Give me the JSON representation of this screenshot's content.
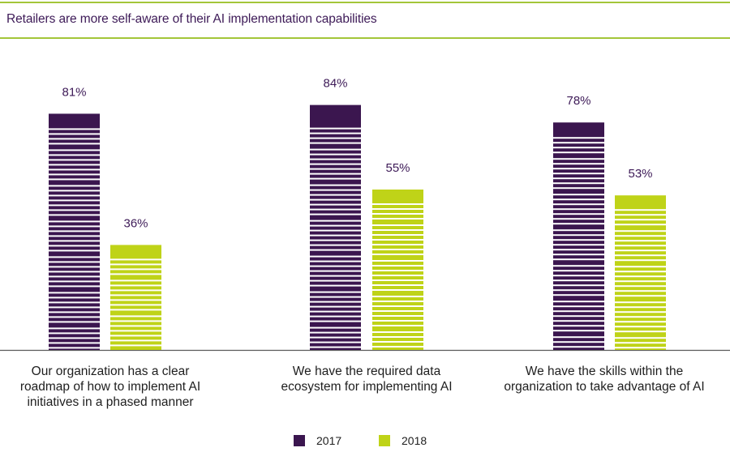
{
  "title": "Retailers are more self-aware of their AI implementation capabilities",
  "colors": {
    "series_2017": "#3b164f",
    "series_2018": "#bfd318",
    "rule": "#a3c639",
    "axis": "#5a5a5a"
  },
  "chart_data": {
    "type": "bar",
    "title": "Retailers are more self-aware of their AI implementation capabilities",
    "categories": [
      "Our organization has a clear roadmap of how to implement AI initiatives in a phased manner",
      "We have the required data ecosystem for implementing AI",
      "We have the skills within the organization to take advantage of AI"
    ],
    "series": [
      {
        "name": "2017",
        "values": [
          81,
          84,
          78
        ],
        "labels": [
          "81%",
          "84%",
          "78%"
        ]
      },
      {
        "name": "2018",
        "values": [
          36,
          55,
          53
        ],
        "labels": [
          "36%",
          "55%",
          "53%"
        ]
      }
    ],
    "ylim": [
      0,
      100
    ],
    "grid": false,
    "legend": "bottom-center",
    "xlabel": "",
    "ylabel": ""
  },
  "category_labels": {
    "c0": "Our organization has a clear roadmap of how to implement AI initiatives in a phased manner",
    "c1": "We have the required data ecosystem for implementing AI",
    "c2": "We have the skills within the organization to take advantage of AI"
  },
  "legend": {
    "s0": "2017",
    "s1": "2018"
  }
}
